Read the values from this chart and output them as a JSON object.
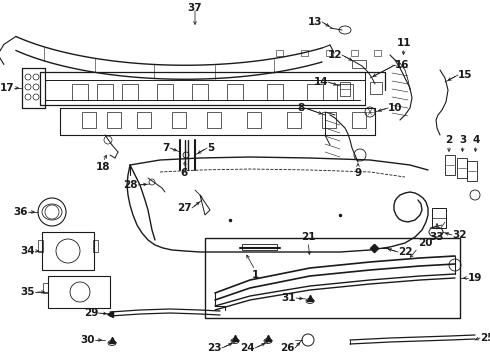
{
  "bg_color": "#ffffff",
  "fig_width": 4.9,
  "fig_height": 3.6,
  "dpi": 100,
  "lc": "#1a1a1a"
}
